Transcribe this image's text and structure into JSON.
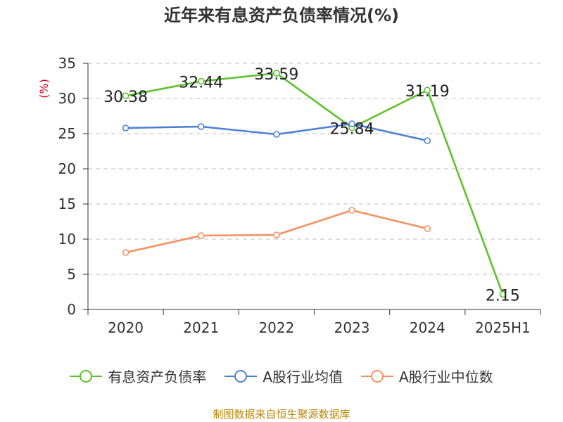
{
  "chart_data": {
    "type": "line",
    "title": "近年来有息资产负债率情况(%)",
    "ylabel": "(%)",
    "categories": [
      "2020",
      "2021",
      "2022",
      "2023",
      "2024",
      "2025H1"
    ],
    "ylim": [
      0,
      35
    ],
    "yticks": [
      0,
      5,
      10,
      15,
      20,
      25,
      30,
      35
    ],
    "grid": true,
    "legend_position": "bottom",
    "series": [
      {
        "name": "有息资产负债率",
        "color": "#5dc22d",
        "values": [
          30.38,
          32.44,
          33.59,
          25.84,
          31.19,
          2.15
        ],
        "labels": [
          "30.38",
          "32.44",
          "33.59",
          "25.84",
          "31.19",
          "2.15"
        ]
      },
      {
        "name": "A股行业均值",
        "color": "#4d7fd6",
        "values": [
          25.8,
          26.0,
          24.9,
          26.4,
          24.0,
          null
        ]
      },
      {
        "name": "A股行业中位数",
        "color": "#f39163",
        "values": [
          8.1,
          10.5,
          10.6,
          14.1,
          11.5,
          null
        ]
      }
    ]
  },
  "source": "制图数据来自恒生聚源数据库"
}
